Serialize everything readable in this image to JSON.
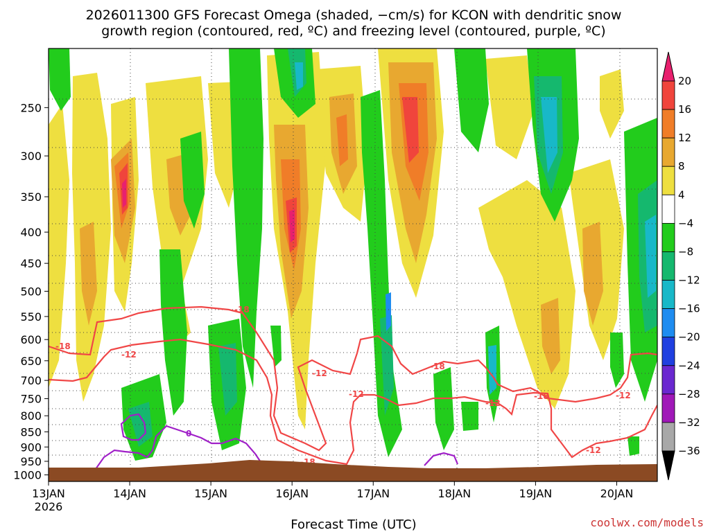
{
  "title_line1": "2026011300 GFS Forecast Omega (shaded, −cm/s) for KCON with dendritic snow",
  "title_line2": "growth region (contoured, red, ºC) and freezing level (contoured, purple, ºC)",
  "credit": "coolwx.com/models",
  "chart_data": {
    "type": "heatmap",
    "title": "2026011300 GFS Forecast Omega (shaded, −cm/s) for KCON with dendritic snow growth region (contoured, red, ºC) and freezing level (contoured, purple, ºC)",
    "xlabel": "Forecast Time (UTC)",
    "ylabel": "",
    "y_axis": {
      "ticks": [
        250,
        300,
        350,
        400,
        450,
        500,
        550,
        600,
        650,
        700,
        750,
        800,
        850,
        900,
        950,
        1000
      ],
      "range": [
        1025,
        200
      ],
      "scale": "log-pressure",
      "grid": true
    },
    "x_axis": {
      "ticks": [
        {
          "label": "13JAN",
          "sublabel": "2026",
          "hour": 0
        },
        {
          "label": "14JAN",
          "hour": 24
        },
        {
          "label": "15JAN",
          "hour": 48
        },
        {
          "label": "16JAN",
          "hour": 72
        },
        {
          "label": "17JAN",
          "hour": 96
        },
        {
          "label": "18JAN",
          "hour": 120
        },
        {
          "label": "19JAN",
          "hour": 144
        },
        {
          "label": "20JAN",
          "hour": 168
        }
      ],
      "range_hours": [
        0,
        180
      ],
      "grid": true
    },
    "colorbar": {
      "labels": [
        "20",
        "16",
        "12",
        "8",
        "4",
        "−4",
        "−8",
        "−12",
        "−16",
        "−20",
        "−24",
        "−28",
        "−32",
        "−36"
      ],
      "bins": [
        {
          "range": ">20",
          "color": "#e8206e"
        },
        {
          "range": "16 to 20",
          "color": "#f0453c"
        },
        {
          "range": "12 to 16",
          "color": "#f07d28"
        },
        {
          "range": "8 to 12",
          "color": "#e8a830"
        },
        {
          "range": "4 to 8",
          "color": "#eedf40"
        },
        {
          "range": "-4 to 4",
          "color": "#ffffff"
        },
        {
          "range": "-8 to -4",
          "color": "#22cc1c"
        },
        {
          "range": "-12 to -8",
          "color": "#15b86e"
        },
        {
          "range": "-16 to -12",
          "color": "#18b8c8"
        },
        {
          "range": "-20 to -16",
          "color": "#1e8cf0"
        },
        {
          "range": "-24 to -20",
          "color": "#2040e0"
        },
        {
          "range": "-28 to -24",
          "color": "#6a28d0"
        },
        {
          "range": "-32 to -28",
          "color": "#a018b8"
        },
        {
          "range": "-36 to -32",
          "color": "#a8a8a8"
        },
        {
          "range": "<-36",
          "color": "#000000"
        }
      ]
    },
    "contour_labels": {
      "dendritic": [
        "-18",
        "-12",
        "-18",
        "-12",
        "-18",
        "-12",
        "-12",
        "-18",
        "-18",
        "-12",
        "-12"
      ],
      "freezing": [
        "0"
      ]
    },
    "colors": {
      "dendritic_contour": "#f04646",
      "freezing_contour": "#a020c8",
      "ground": "#8b4a23"
    }
  }
}
